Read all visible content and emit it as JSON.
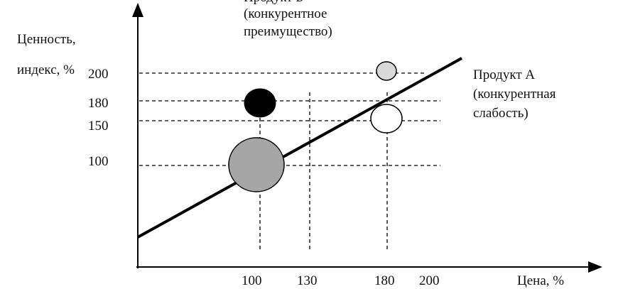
{
  "axes": {
    "y_label_line1": "Ценность,",
    "y_label_line2": "индекс, %",
    "x_label": "Цена, %",
    "y_ticks": [
      "200",
      "180",
      "150",
      "100"
    ],
    "x_ticks": [
      "100",
      "130",
      "180",
      "200"
    ]
  },
  "annotations": {
    "top_title": "Продукт Б",
    "top_line2": "(конкурентное",
    "top_line3": "преимущество)",
    "right_title": "Продукт А",
    "right_line2": "(конкурентная",
    "right_line3": "слабость)"
  },
  "bubbles": [
    {
      "name": "large-gray",
      "price": 100,
      "value": 100,
      "color": "#a6a6a6"
    },
    {
      "name": "black",
      "price": 100,
      "value": 180,
      "color": "#000000"
    },
    {
      "name": "light-gray",
      "price": 180,
      "value": 200,
      "color": "#d9d9d9"
    },
    {
      "name": "white",
      "price": 180,
      "value": 150,
      "color": "#ffffff"
    }
  ]
}
